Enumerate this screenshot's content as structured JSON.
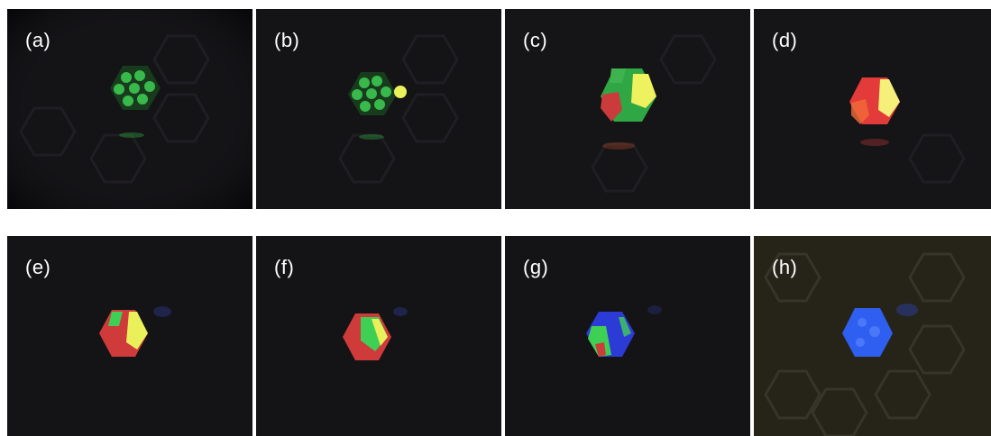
{
  "panels": [
    {
      "label": "(a)",
      "description": "green dots hexagon"
    },
    {
      "label": "(b)",
      "description": "green dots with yellow"
    },
    {
      "label": "(c)",
      "description": "green/red/yellow hexagon"
    },
    {
      "label": "(d)",
      "description": "red/yellow hexagon"
    },
    {
      "label": "(e)",
      "description": "red/green/yellow hexagon"
    },
    {
      "label": "(f)",
      "description": "red/green hexagon"
    },
    {
      "label": "(g)",
      "description": "blue/green/red hexagon"
    },
    {
      "label": "(h)",
      "description": "blue hexagon, bright background"
    }
  ],
  "colors": {
    "background": "#121114",
    "bright_background": "#2a281e",
    "green": "#3fcf55",
    "red": "#e33a3a",
    "yellow": "#f3f05a",
    "blue": "#3a6bff"
  }
}
